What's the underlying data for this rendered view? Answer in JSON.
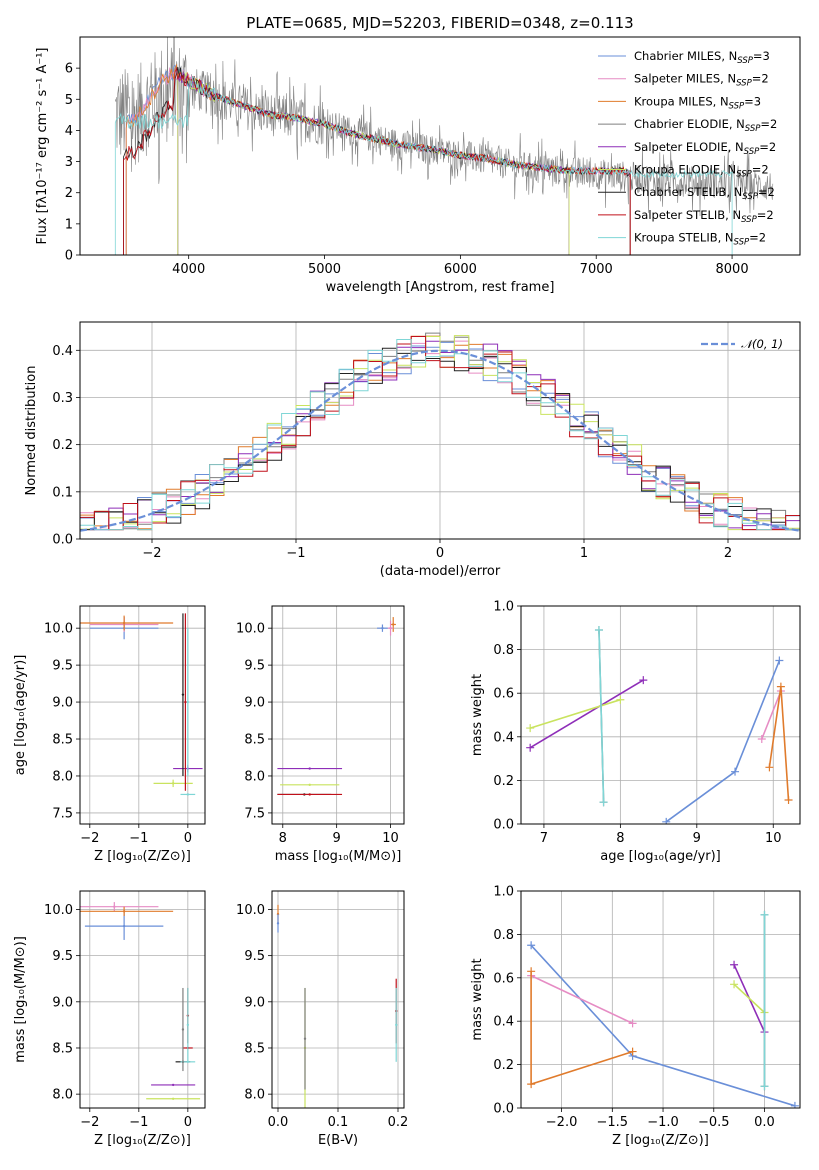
{
  "colors": {
    "chabrier_miles": "#6a8fd8",
    "salpeter_miles": "#e68cc4",
    "kroupa_miles": "#e07b2c",
    "chabrier_elodie": "#7f7f7f",
    "salpeter_elodie": "#8e2eb8",
    "kroupa_elodie": "#c9e35f",
    "chabrier_stelib": "#222222",
    "salpeter_stelib": "#c0101a",
    "kroupa_stelib": "#7fd6d6",
    "data": "#808080",
    "grid": "#b0b0b0"
  },
  "chart_data": [
    {
      "id": "spectrum",
      "type": "line",
      "title": "PLATE=0685, MJD=52203, FIBERID=0348, z=0.113",
      "xlabel": "wavelength [Angstrom, rest frame]",
      "ylabel": "Flux [fλ10⁻¹⁷ erg cm⁻² s⁻¹ A⁻¹]",
      "xlim": [
        3200,
        8500
      ],
      "ylim": [
        0,
        7
      ],
      "xticks": [
        4000,
        5000,
        6000,
        7000,
        8000
      ],
      "yticks": [
        0,
        1,
        2,
        3,
        4,
        5,
        6
      ],
      "grid": false,
      "legend_position": "top-right",
      "legend": [
        {
          "key": "chabrier_miles",
          "label": "Chabrier MILES, N",
          "sub": "SSP",
          "suffix": "=3"
        },
        {
          "key": "salpeter_miles",
          "label": "Salpeter MILES, N",
          "sub": "SSP",
          "suffix": "=2"
        },
        {
          "key": "kroupa_miles",
          "label": "Kroupa MILES, N",
          "sub": "SSP",
          "suffix": "=3"
        },
        {
          "key": "chabrier_elodie",
          "label": "Chabrier ELODIE, N",
          "sub": "SSP",
          "suffix": "=2"
        },
        {
          "key": "salpeter_elodie",
          "label": "Salpeter ELODIE, N",
          "sub": "SSP",
          "suffix": "=2"
        },
        {
          "key": "kroupa_elodie",
          "label": "Kroupa ELODIE, N",
          "sub": "SSP",
          "suffix": "=2"
        },
        {
          "key": "chabrier_stelib",
          "label": "Chabrier STELIB, N",
          "sub": "SSP",
          "suffix": "=2"
        },
        {
          "key": "salpeter_stelib",
          "label": "Salpeter STELIB, N",
          "sub": "SSP",
          "suffix": "=2"
        },
        {
          "key": "kroupa_stelib",
          "label": "Kroupa STELIB, N",
          "sub": "SSP",
          "suffix": "=2"
        }
      ],
      "model_continuum": {
        "x": [
          3460,
          3500,
          3600,
          3700,
          3800,
          3900,
          4000,
          4200,
          4400,
          4600,
          4800,
          5000,
          5200,
          5400,
          5600,
          5800,
          6000,
          6200,
          6400,
          6600,
          6800,
          7000,
          7200,
          7250
        ],
        "y": [
          4.6,
          4.2,
          4.3,
          4.9,
          5.6,
          5.9,
          5.6,
          5.1,
          4.8,
          4.5,
          4.4,
          4.2,
          3.9,
          3.7,
          3.5,
          3.4,
          3.2,
          3.1,
          2.9,
          2.8,
          2.7,
          2.7,
          2.7,
          2.6
        ]
      },
      "data_continuum": {
        "x": [
          3460,
          3600,
          3800,
          4000,
          4500,
          5000,
          5500,
          6000,
          6500,
          7000,
          7500,
          8000,
          8300
        ],
        "y": [
          4.5,
          4.4,
          5.2,
          5.4,
          4.6,
          4.2,
          3.6,
          3.2,
          2.8,
          2.6,
          2.4,
          2.3,
          2.2
        ]
      }
    },
    {
      "id": "residuals",
      "type": "histogram",
      "xlabel": "(data-model)/error",
      "ylabel": "Normed distribution",
      "xlim": [
        -2.5,
        2.5
      ],
      "ylim": [
        0,
        0.46
      ],
      "xticks": [
        -2,
        -1,
        0,
        1,
        2
      ],
      "yticks": [
        0.0,
        0.1,
        0.2,
        0.3,
        0.4
      ],
      "grid": true,
      "legend_position": "top-right",
      "legend_label": "𝒩(0, 1)",
      "normal_curve": {
        "mean": 0,
        "sigma": 1
      }
    },
    {
      "id": "age_vs_Z",
      "type": "scatter",
      "xlabel": "Z [log₁₀(Z/Z⊙)]",
      "ylabel": "age  [log₁₀(age/yr)]",
      "xlim": [
        -2.2,
        0.35
      ],
      "ylim": [
        7.35,
        10.3
      ],
      "xticks": [
        -2,
        -1,
        0
      ],
      "yticks": [
        7.5,
        8.0,
        8.5,
        9.0,
        9.5,
        10.0
      ],
      "grid": true,
      "points": [
        {
          "s": "chabrier_miles",
          "x": -1.3,
          "y": 10.0,
          "xe": 0.7,
          "ye": 0.15
        },
        {
          "s": "salpeter_miles",
          "x": -1.3,
          "y": 10.05,
          "xe": 0.7,
          "ye": 0.1
        },
        {
          "s": "kroupa_miles",
          "x": -1.3,
          "y": 10.07,
          "xe": 1.0,
          "ye": 0.1
        },
        {
          "s": "salpeter_elodie",
          "x": 0.0,
          "y": 8.1,
          "xe": 0.3,
          "ye": 0.05
        },
        {
          "s": "kroupa_elodie",
          "x": -0.3,
          "y": 7.9,
          "xe": 0.4,
          "ye": 0.05
        },
        {
          "s": "kroupa_stelib",
          "x": 0.0,
          "y": 7.75,
          "xe": 0.15,
          "ye": 0.0
        },
        {
          "s": "chabrier_stelib",
          "x": -0.1,
          "y": 9.1,
          "xe": 0.0,
          "ye": 1.1
        },
        {
          "s": "salpeter_stelib",
          "x": -0.05,
          "y": 9.0,
          "xe": 0.0,
          "ye": 1.2
        },
        {
          "s": "kroupa_stelib",
          "x": 0.0,
          "y": 9.0,
          "xe": 0.0,
          "ye": 1.0
        }
      ]
    },
    {
      "id": "age_vs_mass",
      "type": "scatter",
      "xlabel": "mass [log₁₀(M/M⊙)]",
      "ylabel": "",
      "xlim": [
        7.8,
        10.25
      ],
      "ylim": [
        7.35,
        10.3
      ],
      "xticks": [
        8,
        9,
        10
      ],
      "yticks": [
        7.5,
        8.0,
        8.5,
        9.0,
        9.5,
        10.0
      ],
      "grid": true,
      "points": [
        {
          "s": "chabrier_miles",
          "x": 9.85,
          "y": 10.0,
          "xe": 0.1,
          "ye": 0.05
        },
        {
          "s": "kroupa_miles",
          "x": 10.05,
          "y": 10.05,
          "xe": 0.05,
          "ye": 0.1
        },
        {
          "s": "salpeter_miles",
          "x": 10.0,
          "y": 10.0,
          "xe": 0.05,
          "ye": 0.1
        },
        {
          "s": "salpeter_elodie",
          "x": 8.5,
          "y": 8.1,
          "xe": 0.6,
          "ye": 0.0
        },
        {
          "s": "kroupa_elodie",
          "x": 8.5,
          "y": 7.88,
          "xe": 0.55,
          "ye": 0.0
        },
        {
          "s": "chabrier_stelib",
          "x": 8.4,
          "y": 7.75,
          "xe": 0.5,
          "ye": 0.0
        },
        {
          "s": "salpeter_stelib",
          "x": 8.5,
          "y": 7.75,
          "xe": 0.6,
          "ye": 0.0
        }
      ]
    },
    {
      "id": "weight_vs_age",
      "type": "line",
      "xlabel": "age  [log₁₀(age/yr)]",
      "ylabel": "mass weight",
      "xlim": [
        6.7,
        10.35
      ],
      "ylim": [
        0,
        1
      ],
      "xticks": [
        7,
        8,
        9,
        10
      ],
      "yticks": [
        0.0,
        0.2,
        0.4,
        0.6,
        0.8,
        1.0
      ],
      "grid": true,
      "series": [
        {
          "s": "chabrier_miles",
          "x": [
            8.6,
            9.5,
            10.08
          ],
          "y": [
            0.01,
            0.24,
            0.75
          ]
        },
        {
          "s": "salpeter_miles",
          "x": [
            9.85,
            10.1
          ],
          "y": [
            0.39,
            0.61
          ]
        },
        {
          "s": "kroupa_miles",
          "x": [
            9.95,
            10.1,
            10.2
          ],
          "y": [
            0.26,
            0.63,
            0.11
          ]
        },
        {
          "s": "salpeter_elodie",
          "x": [
            6.82,
            8.3
          ],
          "y": [
            0.35,
            0.66
          ]
        },
        {
          "s": "kroupa_elodie",
          "x": [
            6.82,
            8.0
          ],
          "y": [
            0.44,
            0.57
          ]
        },
        {
          "s": "chabrier_elodie",
          "x": [
            7.72,
            7.78
          ],
          "y": [
            0.89,
            0.1
          ]
        },
        {
          "s": "kroupa_stelib",
          "x": [
            7.72,
            7.78
          ],
          "y": [
            0.89,
            0.1
          ]
        }
      ]
    },
    {
      "id": "mass_vs_Z",
      "type": "scatter",
      "xlabel": "Z [log₁₀(Z/Z⊙)]",
      "ylabel": "mass [log₁₀(M/M⊙)]",
      "xlim": [
        -2.2,
        0.35
      ],
      "ylim": [
        7.85,
        10.2
      ],
      "xticks": [
        -2,
        -1,
        0
      ],
      "yticks": [
        8.0,
        8.5,
        9.0,
        9.5,
        10.0
      ],
      "grid": true,
      "points": [
        {
          "s": "chabrier_miles",
          "x": -1.3,
          "y": 9.82,
          "xe": 0.8,
          "ye": 0.15
        },
        {
          "s": "salpeter_miles",
          "x": -1.5,
          "y": 10.03,
          "xe": 0.9,
          "ye": 0.05
        },
        {
          "s": "kroupa_miles",
          "x": -1.3,
          "y": 9.98,
          "xe": 1.0,
          "ye": 0.05
        },
        {
          "s": "salpeter_elodie",
          "x": -0.3,
          "y": 8.1,
          "xe": 0.45,
          "ye": 0.0
        },
        {
          "s": "kroupa_elodie",
          "x": -0.3,
          "y": 7.95,
          "xe": 0.55,
          "ye": 0.0
        },
        {
          "s": "chabrier_stelib",
          "x": -0.1,
          "y": 8.35,
          "xe": 0.15,
          "ye": 0.0
        },
        {
          "s": "salpeter_stelib",
          "x": 0.0,
          "y": 8.5,
          "xe": 0.1,
          "ye": 0.0
        },
        {
          "s": "kroupa_stelib",
          "x": 0.0,
          "y": 8.35,
          "xe": 0.15,
          "ye": 0.0
        },
        {
          "s": "chabrier_elodie",
          "x": -0.1,
          "y": 8.7,
          "xe": 0.0,
          "ye": 0.45
        },
        {
          "s": "salpeter_stelib",
          "x": 0.0,
          "y": 8.85,
          "xe": 0.0,
          "ye": 0.3
        },
        {
          "s": "kroupa_stelib",
          "x": 0.0,
          "y": 8.75,
          "xe": 0.0,
          "ye": 0.4
        }
      ]
    },
    {
      "id": "mass_vs_ebv",
      "type": "scatter",
      "xlabel": "E(B-V)",
      "ylabel": "",
      "xlim": [
        -0.01,
        0.21
      ],
      "ylim": [
        7.85,
        10.2
      ],
      "xticks": [
        0.0,
        0.1,
        0.2
      ],
      "yticks": [
        8.0,
        8.5,
        9.0,
        9.5,
        10.0
      ],
      "grid": true,
      "points": [
        {
          "s": "kroupa_miles",
          "x": 0.0,
          "y": 9.95,
          "xe": 0.0,
          "ye": 0.1
        },
        {
          "s": "chabrier_miles",
          "x": 0.0,
          "y": 9.85,
          "xe": 0.0,
          "ye": 0.1
        },
        {
          "s": "kroupa_elodie",
          "x": 0.045,
          "y": 8.5,
          "xe": 0.0,
          "ye": 0.65
        },
        {
          "s": "chabrier_elodie",
          "x": 0.045,
          "y": 8.6,
          "xe": 0.0,
          "ye": 0.55
        },
        {
          "s": "salpeter_stelib",
          "x": 0.197,
          "y": 8.9,
          "xe": 0.0,
          "ye": 0.35
        },
        {
          "s": "kroupa_stelib",
          "x": 0.197,
          "y": 8.75,
          "xe": 0.0,
          "ye": 0.4
        }
      ]
    },
    {
      "id": "weight_vs_Z",
      "type": "line",
      "xlabel": "Z [log₁₀(Z/Z⊙)]",
      "ylabel": "mass weight",
      "xlim": [
        -2.4,
        0.35
      ],
      "ylim": [
        0,
        1
      ],
      "xticks": [
        -2.0,
        -1.5,
        -1.0,
        -0.5,
        0.0
      ],
      "xticklabels": [
        "−2.0",
        "−1.5",
        "−1.0",
        "−0.5",
        "0.0"
      ],
      "yticks": [
        0.0,
        0.2,
        0.4,
        0.6,
        0.8,
        1.0
      ],
      "grid": true,
      "series": [
        {
          "s": "chabrier_miles",
          "x": [
            -2.3,
            -1.3,
            0.3
          ],
          "y": [
            0.75,
            0.24,
            0.01
          ]
        },
        {
          "s": "salpeter_miles",
          "x": [
            -2.3,
            -1.3
          ],
          "y": [
            0.61,
            0.39
          ]
        },
        {
          "s": "kroupa_miles",
          "x": [
            -2.3,
            -2.3,
            -1.3
          ],
          "y": [
            0.63,
            0.11,
            0.26
          ]
        },
        {
          "s": "salpeter_elodie",
          "x": [
            -0.3,
            0.0
          ],
          "y": [
            0.66,
            0.35
          ]
        },
        {
          "s": "kroupa_elodie",
          "x": [
            -0.3,
            0.0
          ],
          "y": [
            0.57,
            0.44
          ]
        },
        {
          "s": "chabrier_elodie",
          "x": [
            0.0,
            0.0
          ],
          "y": [
            0.89,
            0.1
          ]
        },
        {
          "s": "kroupa_stelib",
          "x": [
            0.0,
            0.0
          ],
          "y": [
            0.89,
            0.1
          ]
        }
      ]
    }
  ]
}
